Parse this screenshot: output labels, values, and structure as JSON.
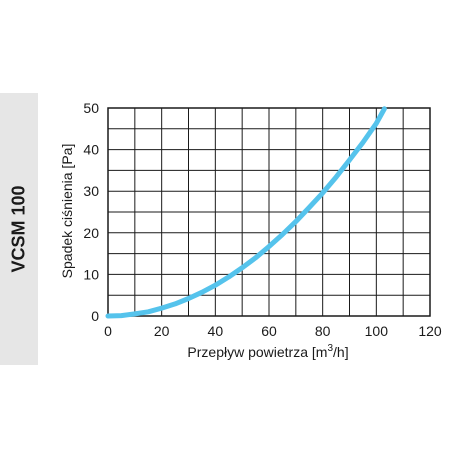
{
  "side_label": "VCSM 100",
  "chart_data": {
    "type": "line",
    "title": "",
    "xlabel": "Przepływ powietrza [m",
    "xlabel_sup": "3",
    "xlabel_suffix": "/h]",
    "ylabel": "Spadek ciśnienia [Pa]",
    "xlim": [
      0,
      120
    ],
    "ylim": [
      0,
      50
    ],
    "x_ticks": [
      "0",
      "20",
      "40",
      "60",
      "80",
      "100",
      "120"
    ],
    "y_ticks": [
      "0",
      "10",
      "20",
      "30",
      "40",
      "50"
    ],
    "x_minor_step": 10,
    "y_minor_step": 5,
    "grid": true,
    "line_color": "#55c3ec",
    "series": [
      {
        "x": [
          0,
          5,
          10,
          15,
          20,
          25,
          30,
          35,
          40,
          45,
          50,
          55,
          60,
          65,
          70,
          75,
          80,
          85,
          90,
          95,
          100,
          103
        ],
        "y": [
          0,
          0.1,
          0.5,
          1.0,
          1.9,
          2.9,
          4.2,
          5.7,
          7.4,
          9.4,
          11.6,
          14.0,
          16.7,
          19.6,
          22.7,
          26.1,
          29.6,
          33.4,
          37.5,
          41.7,
          46.3,
          49.8
        ]
      }
    ]
  }
}
